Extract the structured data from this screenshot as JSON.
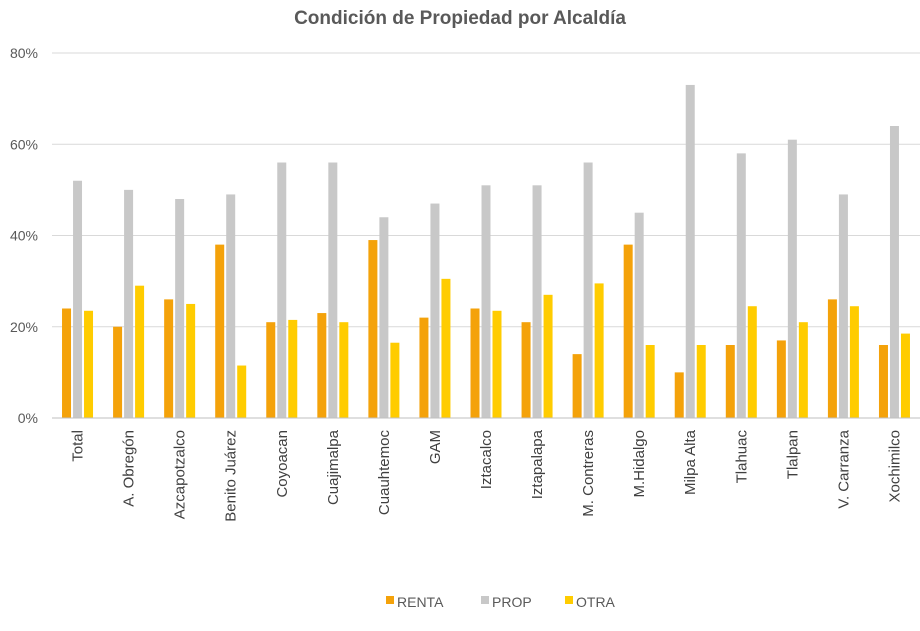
{
  "chart_data": {
    "type": "bar",
    "title": "Condición de Propiedad por Alcaldía",
    "xlabel": "",
    "ylabel": "",
    "ylim": [
      0,
      80
    ],
    "y_ticks": [
      0,
      20,
      40,
      60,
      80
    ],
    "y_tick_labels": [
      "0%",
      "20%",
      "40%",
      "60%",
      "80%"
    ],
    "grid": true,
    "legend_position": "bottom",
    "categories": [
      "Total",
      "A. Obregón",
      "Azcapotzalco",
      "Benito Juárez",
      "Coyoacan",
      "Cuajimalpa",
      "Cuauhtemoc",
      "GAM",
      "Iztacalco",
      "Iztapalapa",
      "M. Contreras",
      "M.Hidalgo",
      "Milpa Alta",
      "Tlahuac",
      "Tlalpan",
      "V. Carranza",
      "Xochimilco"
    ],
    "series": [
      {
        "name": "RENTA",
        "color": "#f4a20a",
        "values": [
          24,
          20,
          26,
          38,
          21,
          23,
          39,
          22,
          24,
          21,
          14,
          38,
          10,
          16,
          17,
          26,
          16
        ]
      },
      {
        "name": "PROP",
        "color": "#c8c8c8",
        "values": [
          52,
          50,
          48,
          49,
          56,
          56,
          44,
          47,
          51,
          51,
          56,
          45,
          73,
          58,
          61,
          49,
          64
        ]
      },
      {
        "name": "OTRA",
        "color": "#ffcc00",
        "values": [
          23.5,
          29,
          25,
          11.5,
          21.5,
          21,
          16.5,
          30.5,
          23.5,
          27,
          29.5,
          16,
          16,
          24.5,
          21,
          24.5,
          18.5
        ]
      }
    ]
  }
}
